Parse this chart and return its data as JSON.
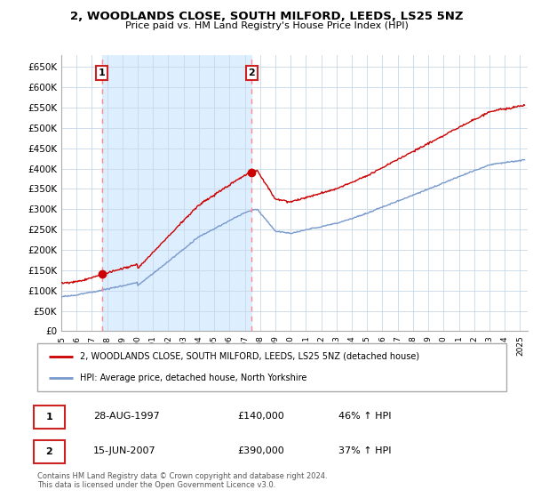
{
  "title": "2, WOODLANDS CLOSE, SOUTH MILFORD, LEEDS, LS25 5NZ",
  "subtitle": "Price paid vs. HM Land Registry's House Price Index (HPI)",
  "ylabel_ticks": [
    "£0",
    "£50K",
    "£100K",
    "£150K",
    "£200K",
    "£250K",
    "£300K",
    "£350K",
    "£400K",
    "£450K",
    "£500K",
    "£550K",
    "£600K",
    "£650K"
  ],
  "ytick_values": [
    0,
    50000,
    100000,
    150000,
    200000,
    250000,
    300000,
    350000,
    400000,
    450000,
    500000,
    550000,
    600000,
    650000
  ],
  "ylim": [
    0,
    680000
  ],
  "xlim_start": 1995.0,
  "xlim_end": 2025.5,
  "grid_color": "#c8d8e8",
  "background_color": "#ffffff",
  "shade_color": "#ddeeff",
  "sale1_year": 1997.65,
  "sale1_price": 140000,
  "sale2_year": 2007.46,
  "sale2_price": 390000,
  "sale1_label": "1",
  "sale2_label": "2",
  "legend_line1": "2, WOODLANDS CLOSE, SOUTH MILFORD, LEEDS, LS25 5NZ (detached house)",
  "legend_line2": "HPI: Average price, detached house, North Yorkshire",
  "table_row1": [
    "1",
    "28-AUG-1997",
    "£140,000",
    "46% ↑ HPI"
  ],
  "table_row2": [
    "2",
    "15-JUN-2007",
    "£390,000",
    "37% ↑ HPI"
  ],
  "footer": "Contains HM Land Registry data © Crown copyright and database right 2024.\nThis data is licensed under the Open Government Licence v3.0.",
  "house_line_color": "#cc0000",
  "hpi_line_color": "#7799cc",
  "dashed_vline_color": "#ff8888"
}
